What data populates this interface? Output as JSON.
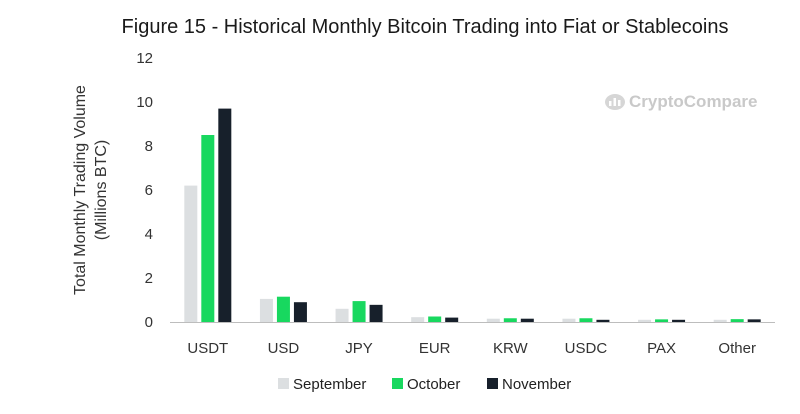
{
  "colors": {
    "September": "#dcdfe1",
    "October": "#18d85f",
    "November": "#17202b",
    "axis": "#bdbdbd",
    "watermark": "#c9c9c9"
  },
  "watermark_text": "CryptoCompare",
  "watermark_icon": "cryptocompare-logo-icon",
  "chart_data": {
    "type": "bar",
    "title": "Figure 15 - Historical Monthly Bitcoin Trading into Fiat or Stablecoins",
    "xlabel": "",
    "ylabel": "Total Monthly Trading Volume",
    "ylabel_sub": "(Millions BTC)",
    "ylim": [
      0,
      12
    ],
    "yticks": [
      0,
      2,
      4,
      6,
      8,
      10,
      12
    ],
    "grid": false,
    "legend_position": "bottom",
    "categories": [
      "USDT",
      "USD",
      "JPY",
      "EUR",
      "KRW",
      "USDC",
      "PAX",
      "Other"
    ],
    "series": [
      {
        "name": "September",
        "values": [
          6.2,
          1.05,
          0.6,
          0.22,
          0.15,
          0.15,
          0.1,
          0.1
        ]
      },
      {
        "name": "October",
        "values": [
          8.5,
          1.15,
          0.95,
          0.25,
          0.17,
          0.17,
          0.12,
          0.13
        ]
      },
      {
        "name": "November",
        "values": [
          9.7,
          0.9,
          0.78,
          0.2,
          0.15,
          0.1,
          0.1,
          0.12
        ]
      }
    ]
  }
}
